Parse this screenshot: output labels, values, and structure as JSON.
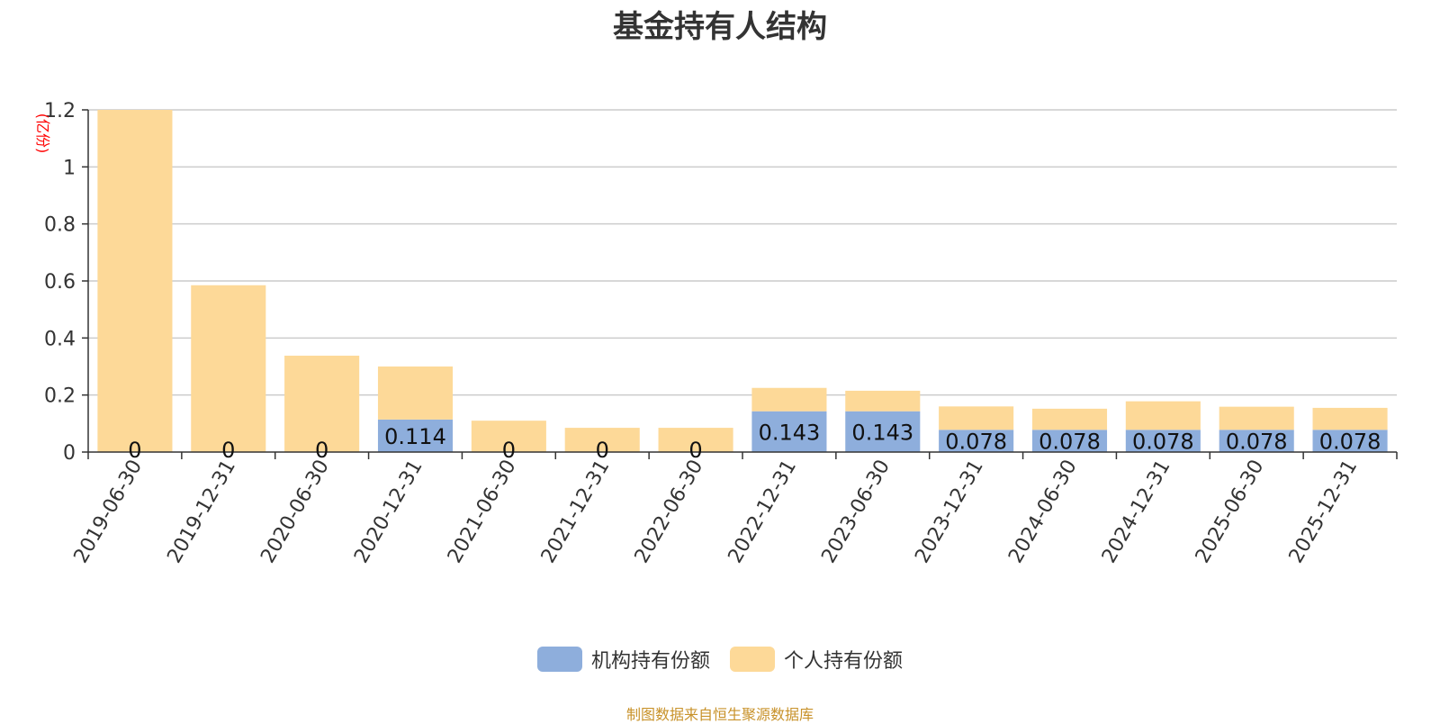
{
  "source_note": "制图数据来自恒生聚源数据库",
  "colors": {
    "institutional": "#8eaedc",
    "individual": "#fdd998",
    "grid": "#cccccc",
    "axis": "#333333",
    "unit": "#ff0000"
  },
  "chart_data": {
    "type": "bar",
    "stacked": true,
    "title": "基金持有人结构",
    "ylabel": "(亿份)",
    "ylim": [
      0,
      1.2
    ],
    "yticks": [
      "0",
      "0.2",
      "0.4",
      "0.6",
      "0.8",
      "1",
      "1.2"
    ],
    "grid": true,
    "legend_position": "bottom",
    "categories": [
      "2019-06-30",
      "2019-12-31",
      "2020-06-30",
      "2020-12-31",
      "2021-06-30",
      "2021-12-31",
      "2022-06-30",
      "2022-12-31",
      "2023-06-30",
      "2023-12-31",
      "2024-06-30",
      "2024-12-31",
      "2025-06-30",
      "2025-12-31"
    ],
    "series": [
      {
        "name": "机构持有份额",
        "color": "#8eaedc",
        "values": [
          0,
          0,
          0,
          0.114,
          0,
          0,
          0,
          0.143,
          0.143,
          0.078,
          0.078,
          0.078,
          0.078,
          0.078
        ],
        "labels": [
          "0",
          "0",
          "0",
          "0.114",
          "0",
          "0",
          "0",
          "0.143",
          "0.143",
          "0.078",
          "0.078",
          "0.078",
          "0.078",
          "0.078"
        ]
      },
      {
        "name": "个人持有份额",
        "color": "#fdd998",
        "values": [
          1.2,
          0.585,
          0.338,
          0.186,
          0.11,
          0.085,
          0.085,
          0.082,
          0.072,
          0.082,
          0.074,
          0.1,
          0.081,
          0.077
        ]
      }
    ]
  }
}
